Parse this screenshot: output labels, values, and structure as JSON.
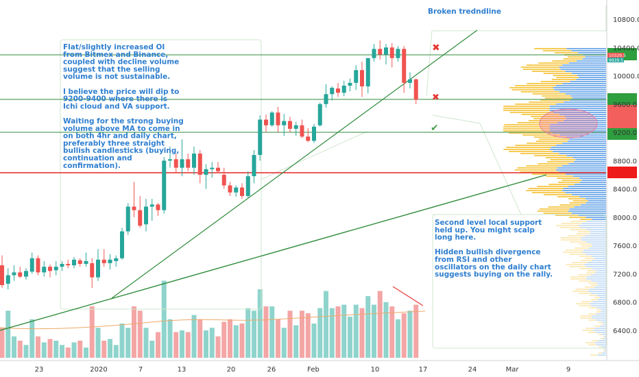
{
  "chart_data": {
    "type": "candlestick",
    "y_ticks": [
      "10800.0",
      "10400.0",
      "10000.0",
      "9600.0",
      "9200.0",
      "8800.0",
      "8400.0",
      "8000.0",
      "7600.0",
      "7200.0",
      "6800.0",
      "6400.0"
    ],
    "y_tick_values": [
      10800,
      10400,
      10000,
      9600,
      9200,
      8800,
      8400,
      8000,
      7600,
      7200,
      6800,
      6400
    ],
    "x_ticks": [
      "23",
      "2020",
      "7",
      "13",
      "20",
      "26",
      "Feb",
      "10",
      "17",
      "24",
      "Mar",
      "9"
    ],
    "ylim": [
      6000,
      11000
    ],
    "price_labels": [
      "10329.5",
      "9939.5"
    ],
    "candles": [
      {
        "o": 7320,
        "h": 7460,
        "l": 7000,
        "c": 7040
      },
      {
        "o": 7060,
        "h": 7280,
        "l": 6980,
        "c": 7180
      },
      {
        "o": 7180,
        "h": 7320,
        "l": 7100,
        "c": 7220
      },
      {
        "o": 7220,
        "h": 7300,
        "l": 7140,
        "c": 7160
      },
      {
        "o": 7160,
        "h": 7280,
        "l": 7120,
        "c": 7240
      },
      {
        "o": 7230,
        "h": 7500,
        "l": 7200,
        "c": 7420
      },
      {
        "o": 7420,
        "h": 7460,
        "l": 7180,
        "c": 7220
      },
      {
        "o": 7220,
        "h": 7380,
        "l": 7160,
        "c": 7300
      },
      {
        "o": 7300,
        "h": 7330,
        "l": 7150,
        "c": 7240
      },
      {
        "o": 7250,
        "h": 7380,
        "l": 7180,
        "c": 7300
      },
      {
        "o": 7300,
        "h": 7380,
        "l": 7240,
        "c": 7340
      },
      {
        "o": 7340,
        "h": 7400,
        "l": 7280,
        "c": 7320
      },
      {
        "o": 7320,
        "h": 7440,
        "l": 7280,
        "c": 7400
      },
      {
        "o": 7390,
        "h": 7420,
        "l": 7300,
        "c": 7340
      },
      {
        "o": 7340,
        "h": 7500,
        "l": 7300,
        "c": 7380
      },
      {
        "o": 7350,
        "h": 7420,
        "l": 7000,
        "c": 7150
      },
      {
        "o": 7150,
        "h": 7550,
        "l": 7100,
        "c": 7400
      },
      {
        "o": 7400,
        "h": 7550,
        "l": 7300,
        "c": 7350
      },
      {
        "o": 7350,
        "h": 7480,
        "l": 7260,
        "c": 7400
      },
      {
        "o": 7380,
        "h": 7460,
        "l": 7300,
        "c": 7420
      },
      {
        "o": 7420,
        "h": 7850,
        "l": 7400,
        "c": 7800
      },
      {
        "o": 7800,
        "h": 8200,
        "l": 7750,
        "c": 8150
      },
      {
        "o": 8150,
        "h": 8500,
        "l": 8000,
        "c": 8100
      },
      {
        "o": 8100,
        "h": 8300,
        "l": 7850,
        "c": 7880
      },
      {
        "o": 7900,
        "h": 8260,
        "l": 7800,
        "c": 8150
      },
      {
        "o": 8150,
        "h": 8260,
        "l": 7950,
        "c": 8180
      },
      {
        "o": 8180,
        "h": 8200,
        "l": 8020,
        "c": 8100
      },
      {
        "o": 8100,
        "h": 8850,
        "l": 8050,
        "c": 8800
      },
      {
        "o": 8800,
        "h": 9000,
        "l": 8700,
        "c": 8820
      },
      {
        "o": 8820,
        "h": 8900,
        "l": 8620,
        "c": 8700
      },
      {
        "o": 8700,
        "h": 9100,
        "l": 8580,
        "c": 8820
      },
      {
        "o": 8820,
        "h": 8900,
        "l": 8650,
        "c": 8700
      },
      {
        "o": 8700,
        "h": 9000,
        "l": 8600,
        "c": 8900
      },
      {
        "o": 8900,
        "h": 8950,
        "l": 8480,
        "c": 8600
      },
      {
        "o": 8600,
        "h": 8750,
        "l": 8400,
        "c": 8680
      },
      {
        "o": 8680,
        "h": 8780,
        "l": 8560,
        "c": 8700
      },
      {
        "o": 8700,
        "h": 8780,
        "l": 8620,
        "c": 8650
      },
      {
        "o": 8600,
        "h": 8700,
        "l": 8400,
        "c": 8450
      },
      {
        "o": 8450,
        "h": 8500,
        "l": 8300,
        "c": 8350
      },
      {
        "o": 8350,
        "h": 8450,
        "l": 8290,
        "c": 8420
      },
      {
        "o": 8420,
        "h": 8480,
        "l": 8260,
        "c": 8300
      },
      {
        "o": 8300,
        "h": 8650,
        "l": 8280,
        "c": 8580
      },
      {
        "o": 8580,
        "h": 8950,
        "l": 8480,
        "c": 8880
      },
      {
        "o": 8880,
        "h": 9440,
        "l": 8800,
        "c": 9380
      },
      {
        "o": 9380,
        "h": 9450,
        "l": 9200,
        "c": 9300
      },
      {
        "o": 9300,
        "h": 9500,
        "l": 9280,
        "c": 9480
      },
      {
        "o": 9480,
        "h": 9560,
        "l": 9200,
        "c": 9300
      },
      {
        "o": 9300,
        "h": 9460,
        "l": 9150,
        "c": 9360
      },
      {
        "o": 9360,
        "h": 9420,
        "l": 9200,
        "c": 9250
      },
      {
        "o": 9250,
        "h": 9350,
        "l": 9150,
        "c": 9300
      },
      {
        "o": 9300,
        "h": 9380,
        "l": 9120,
        "c": 9140
      },
      {
        "o": 9140,
        "h": 9260,
        "l": 9060,
        "c": 9080
      },
      {
        "o": 9080,
        "h": 9320,
        "l": 9050,
        "c": 9280
      },
      {
        "o": 9300,
        "h": 9620,
        "l": 9280,
        "c": 9600
      },
      {
        "o": 9600,
        "h": 9880,
        "l": 9550,
        "c": 9740
      },
      {
        "o": 9740,
        "h": 9850,
        "l": 9650,
        "c": 9830
      },
      {
        "o": 9820,
        "h": 9900,
        "l": 9700,
        "c": 9760
      },
      {
        "o": 9760,
        "h": 9930,
        "l": 9710,
        "c": 9860
      },
      {
        "o": 9860,
        "h": 9960,
        "l": 9780,
        "c": 9900
      },
      {
        "o": 9900,
        "h": 10150,
        "l": 9800,
        "c": 10080
      },
      {
        "o": 10080,
        "h": 10200,
        "l": 9700,
        "c": 9850
      },
      {
        "o": 9850,
        "h": 10200,
        "l": 9750,
        "c": 10250
      },
      {
        "o": 10250,
        "h": 10450,
        "l": 10200,
        "c": 10380
      },
      {
        "o": 10380,
        "h": 10500,
        "l": 10230,
        "c": 10300
      },
      {
        "o": 10300,
        "h": 10450,
        "l": 10160,
        "c": 10400
      },
      {
        "o": 10400,
        "h": 10460,
        "l": 10120,
        "c": 10250
      },
      {
        "o": 10250,
        "h": 10420,
        "l": 10200,
        "c": 10380
      },
      {
        "o": 10380,
        "h": 10420,
        "l": 9760,
        "c": 9900
      },
      {
        "o": 9900,
        "h": 10050,
        "l": 9820,
        "c": 9950
      },
      {
        "o": 9950,
        "h": 9960,
        "l": 9600,
        "c": 9660
      }
    ],
    "volume": [
      0.35,
      0.55,
      0.25,
      0.2,
      0.15,
      0.45,
      0.25,
      0.18,
      0.22,
      0.2,
      0.15,
      0.12,
      0.18,
      0.2,
      0.12,
      0.6,
      0.35,
      0.2,
      0.22,
      0.15,
      0.4,
      0.35,
      0.6,
      0.55,
      0.35,
      0.2,
      0.3,
      0.9,
      0.45,
      0.3,
      0.32,
      0.3,
      0.5,
      0.45,
      0.32,
      0.35,
      0.25,
      0.42,
      0.45,
      0.38,
      0.4,
      0.58,
      0.55,
      0.8,
      0.6,
      0.6,
      0.45,
      0.35,
      0.55,
      0.38,
      0.55,
      0.52,
      0.4,
      0.58,
      0.78,
      0.58,
      0.6,
      0.62,
      0.48,
      0.62,
      0.58,
      0.72,
      0.62,
      0.78,
      0.65,
      0.6,
      0.45,
      0.52,
      0.55,
      0.62
    ]
  },
  "notes": {
    "left": [
      "Flat/slightly increased OI",
      "from Bitmex and Binance,",
      "coupled with decline volume",
      "suggest that the selling",
      "volume is not sustainable.",
      "",
      "I believe the price will dip to",
      "9200-9400 where there is",
      "Ichi cloud and VA support.",
      "",
      "Waiting for the strong buying",
      "volume above MA to come in",
      "on both 4hr and daily chart,",
      "preferably three straight",
      "bullish candlesticks (buying,",
      "continuation and",
      "confirmation)."
    ],
    "top": [
      "Broken tredndline"
    ],
    "right": [
      "Second level local support",
      "held up.  You might scalp",
      "long here.",
      "",
      "Hidden bullish divergence",
      "from RSI and other",
      "oscillators on the daily chart",
      "suggests buying on the rally."
    ]
  },
  "marks": {
    "cross_a": "✖",
    "cross_b": "✖",
    "check": "✔"
  },
  "colors": {
    "up": "#26a69a",
    "down": "#ef5350",
    "vol_up": "#8fd4cc",
    "vol_down": "#f3a6a5",
    "green_line": "#2e8b3a",
    "red_line": "#e52222",
    "note_text": "#2f7fd0",
    "profile_blue": "#6aa6e8",
    "profile_yellow": "#f5c542"
  }
}
